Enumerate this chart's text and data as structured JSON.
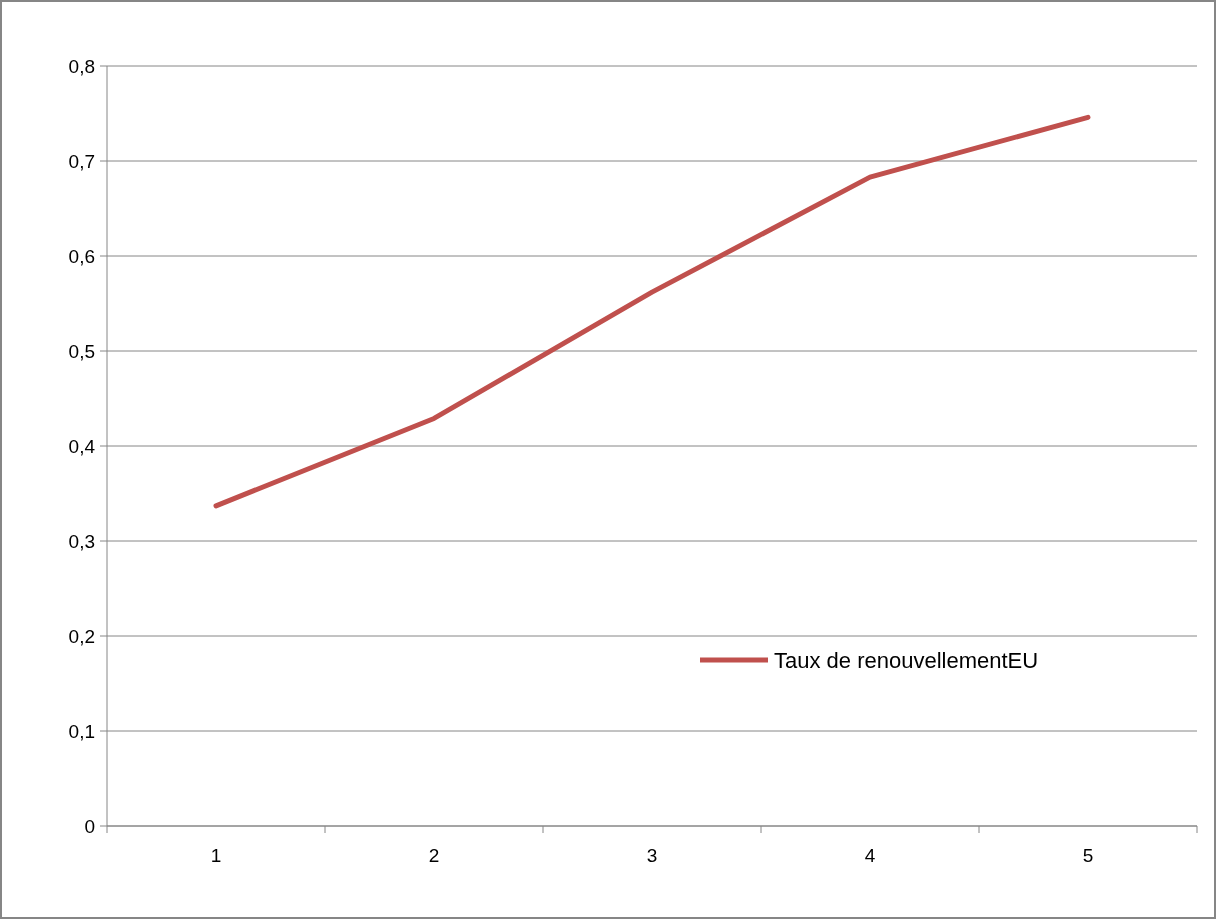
{
  "chart_data": {
    "type": "line",
    "categories": [
      "1",
      "2",
      "3",
      "4",
      "5"
    ],
    "series": [
      {
        "name": "Taux de renouvellementEU",
        "color": "#c0504d",
        "values": [
          0.337,
          0.429,
          0.562,
          0.683,
          0.746
        ]
      }
    ],
    "ylim": [
      0,
      0.8
    ],
    "yticks": [
      0,
      {
        "value": 0.1,
        "label": "0,1"
      },
      {
        "value": 0.2,
        "label": "0,2"
      },
      {
        "value": 0.3,
        "label": "0,3"
      },
      {
        "value": 0.4,
        "label": "0,4"
      },
      {
        "value": 0.5,
        "label": "0,5"
      },
      {
        "value": 0.6,
        "label": "0,6"
      },
      {
        "value": 0.7,
        "label": "0,7"
      },
      {
        "value": 0.8,
        "label": "0,8"
      }
    ],
    "grid": "y",
    "legend": "right",
    "marker": "none",
    "line_style": "solid"
  }
}
